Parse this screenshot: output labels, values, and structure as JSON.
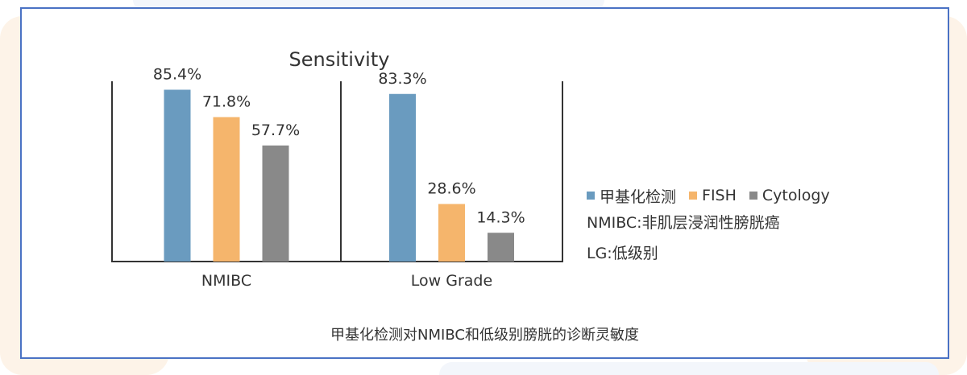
{
  "chart_data": {
    "type": "bar",
    "title": "Sensitivity",
    "groups": [
      "NMIBC",
      "Low Grade"
    ],
    "series": [
      {
        "name": "甲基化检测",
        "values": [
          85.4,
          83.3
        ],
        "labels": [
          "85.4%",
          "83.3%"
        ]
      },
      {
        "name": "FISH",
        "values": [
          71.8,
          28.6
        ],
        "labels": [
          "71.8%",
          "28.6%"
        ]
      },
      {
        "name": "Cytology",
        "values": [
          57.7,
          14.3
        ],
        "labels": [
          "57.7%",
          "14.3%"
        ]
      }
    ],
    "colors": [
      "#6a9bbf",
      "#f5b56c",
      "#898989"
    ],
    "ylim": [
      0,
      100
    ],
    "legend_position": "right"
  },
  "notes": [
    "NMIBC:非肌层浸润性膀胱癌",
    "LG:低级别"
  ],
  "caption": "甲基化检测对NMIBC和低级别膀胱的诊断灵敏度"
}
